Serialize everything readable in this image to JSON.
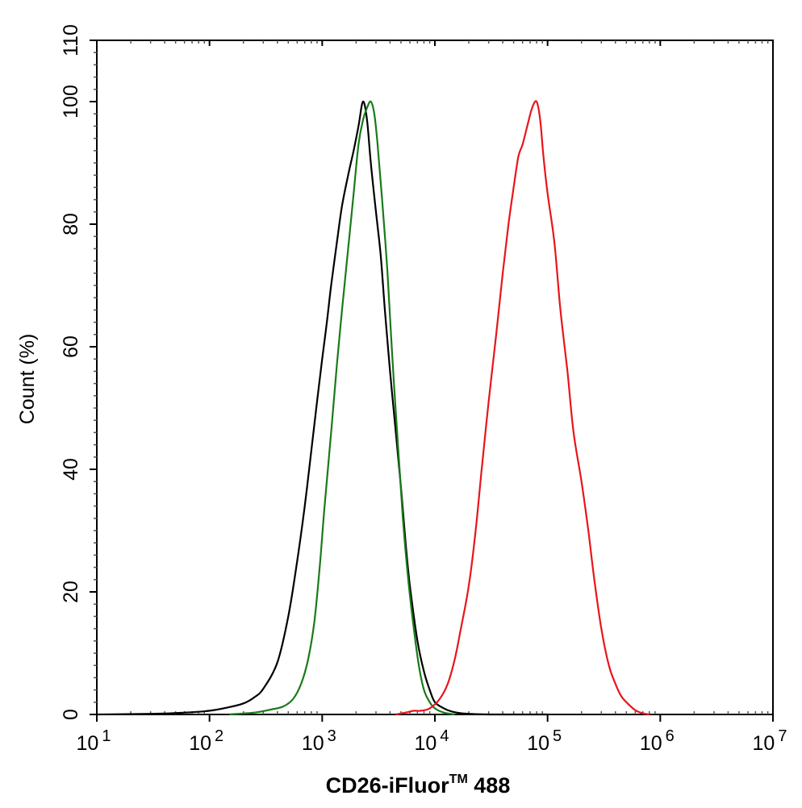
{
  "chart_data": {
    "type": "line",
    "title": "",
    "xlabel_main": "CD26-iFluor",
    "xlabel_sup": "TM",
    "xlabel_tail": " 488",
    "ylabel": "Count  (%)",
    "xscale": "log",
    "xlim": [
      10,
      10000000
    ],
    "ylim": [
      0,
      110
    ],
    "grid": false,
    "x_ticks": [
      {
        "base": "10",
        "exp": "1"
      },
      {
        "base": "10",
        "exp": "2"
      },
      {
        "base": "10",
        "exp": "3"
      },
      {
        "base": "10",
        "exp": "4"
      },
      {
        "base": "10",
        "exp": "5"
      },
      {
        "base": "10",
        "exp": "6"
      },
      {
        "base": "10",
        "exp": "7"
      }
    ],
    "x_tick_values": [
      10,
      100,
      1000,
      10000,
      100000,
      1000000,
      10000000
    ],
    "y_tick_labels": [
      "0",
      "20",
      "40",
      "60",
      "80",
      "100",
      "110"
    ],
    "y_tick_values": [
      0,
      20,
      40,
      60,
      80,
      100,
      110
    ],
    "series": [
      {
        "color": "#000000",
        "x": [
          10,
          30,
          60,
          100,
          150,
          200,
          250,
          300,
          400,
          500,
          600,
          700,
          800,
          900,
          1000,
          1100,
          1200,
          1350,
          1500,
          1700,
          1900,
          2100,
          2300,
          2500,
          2700,
          3000,
          3300,
          3600,
          4000,
          4500,
          5000,
          5500,
          6000,
          7000,
          8000,
          9000,
          10000,
          12000,
          14000,
          17000,
          20000,
          30000,
          100000
        ],
        "y": [
          0,
          0.1,
          0.3,
          0.6,
          1.2,
          1.8,
          2.8,
          4.2,
          8.5,
          16,
          25,
          34,
          43,
          51,
          58,
          64,
          70,
          77,
          83,
          88,
          92,
          96,
          100,
          97,
          90,
          82,
          75,
          66,
          56,
          46,
          37,
          28,
          21,
          12,
          7,
          4,
          2,
          1,
          0.5,
          0.2,
          0.1,
          0,
          0
        ]
      },
      {
        "color": "#1a7a1a",
        "x": [
          150,
          250,
          350,
          450,
          550,
          650,
          750,
          850,
          950,
          1050,
          1200,
          1350,
          1500,
          1700,
          1900,
          2100,
          2300,
          2500,
          2700,
          2900,
          3100,
          3400,
          3800,
          4200,
          4700,
          5200,
          5800,
          6500,
          7200,
          8000,
          9000,
          10000,
          12000,
          15000
        ],
        "y": [
          0,
          0.3,
          0.8,
          1.3,
          2.5,
          5,
          9,
          15,
          24,
          34,
          46,
          57,
          66,
          76,
          85,
          93,
          97,
          99,
          100,
          98,
          93,
          84,
          72,
          58,
          44,
          32,
          22,
          14,
          8,
          4,
          2,
          1,
          0.3,
          0
        ]
      },
      {
        "color": "#e8151b",
        "x": [
          4500,
          5500,
          6500,
          7500,
          9000,
          11000,
          13000,
          15000,
          17000,
          20000,
          23000,
          26000,
          30000,
          35000,
          40000,
          45000,
          50000,
          55000,
          60000,
          66000,
          73000,
          80000,
          86000,
          92000,
          100000,
          115000,
          130000,
          150000,
          170000,
          200000,
          230000,
          260000,
          300000,
          350000,
          400000,
          450000,
          500000,
          600000,
          700000,
          800000
        ],
        "y": [
          0,
          0.3,
          0.6,
          0.6,
          1,
          2.5,
          5,
          9,
          14,
          21,
          30,
          40,
          51,
          62,
          72,
          80,
          86,
          91,
          93,
          96,
          99,
          100,
          97,
          91,
          85,
          77,
          66,
          56,
          46,
          38,
          30,
          22,
          14,
          8,
          5,
          3,
          2,
          0.7,
          0.2,
          0
        ]
      }
    ]
  }
}
